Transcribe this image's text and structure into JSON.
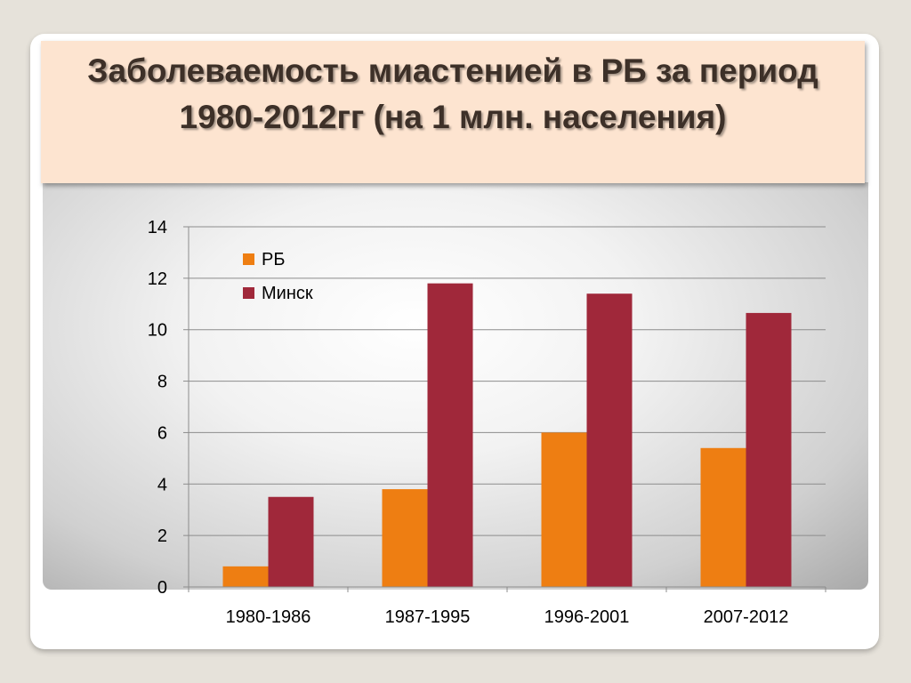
{
  "slide": {
    "title": "Заболеваемость миастенией в РБ за период 1980-2012гг (на 1 млн. населения)"
  },
  "chart_data": {
    "type": "bar",
    "title": "",
    "xlabel": "",
    "ylabel": "",
    "categories": [
      "1980-1986",
      "1987-1995",
      "1996-2001",
      "2007-2012"
    ],
    "series": [
      {
        "name": "РБ",
        "color": "#ee7e12",
        "values": [
          0.8,
          3.8,
          6.0,
          5.4
        ]
      },
      {
        "name": "Минск",
        "color": "#a0283a",
        "values": [
          3.5,
          11.8,
          11.4,
          10.65
        ]
      }
    ],
    "ylim": [
      0,
      14
    ],
    "yticks": [
      "0",
      "2",
      "4",
      "6",
      "8",
      "10",
      "12",
      "14"
    ],
    "grid": true,
    "legend_position": "top-left"
  }
}
